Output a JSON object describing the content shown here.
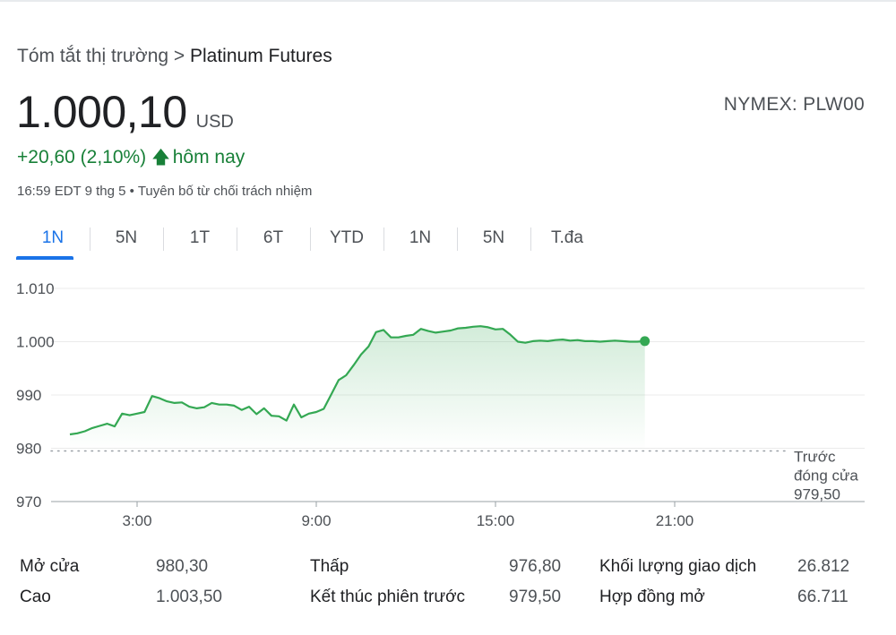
{
  "breadcrumb": {
    "parent": "Tóm tắt thị trường",
    "separator": ">",
    "current": "Platinum Futures"
  },
  "quote": {
    "price": "1.000,10",
    "currency": "USD",
    "exchange": "NYMEX: PLW00",
    "change": "+20,60 (2,10%)",
    "change_suffix": "hôm nay",
    "timestamp": "16:59 EDT 9 thg 5",
    "disclaimer": "Tuyên bố từ chối trách nhiệm"
  },
  "tabs": [
    {
      "label": "1N",
      "active": true
    },
    {
      "label": "5N"
    },
    {
      "label": "1T"
    },
    {
      "label": "6T"
    },
    {
      "label": "YTD"
    },
    {
      "label": "1N"
    },
    {
      "label": "5N"
    },
    {
      "label": "T.đa"
    }
  ],
  "colors": {
    "up": "#188038",
    "line": "#34a853",
    "accent": "#1a73e8"
  },
  "chart_data": {
    "type": "area",
    "x_unit": "hours",
    "x_ticks": [
      3,
      9,
      15,
      21
    ],
    "x_tick_labels": [
      "3:00",
      "9:00",
      "15:00",
      "21:00"
    ],
    "xlim": [
      0,
      26
    ],
    "ylim": [
      970,
      1010
    ],
    "y_ticks": [
      970,
      980,
      990,
      1000,
      1010
    ],
    "y_tick_labels": [
      "970",
      "980",
      "990",
      "1.000",
      "1.010"
    ],
    "grid": true,
    "previous_close": 979.5,
    "previous_close_label": [
      "Trước",
      "đóng cửa",
      "979,50"
    ],
    "series": [
      {
        "x": [
          0.75,
          1,
          1.25,
          1.5,
          1.75,
          2,
          2.25,
          2.5,
          2.75,
          3,
          3.25,
          3.5,
          3.75,
          4,
          4.25,
          4.5,
          4.75,
          5,
          5.25,
          5.5,
          5.75,
          6,
          6.25,
          6.5,
          6.75,
          7,
          7.25,
          7.5,
          7.75,
          8,
          8.25,
          8.5,
          8.75,
          9,
          9.25,
          9.5,
          9.75,
          10,
          10.25,
          10.5,
          10.75,
          11,
          11.25,
          11.5,
          11.75,
          12,
          12.25,
          12.5,
          12.75,
          13,
          13.25,
          13.5,
          13.75,
          14,
          14.25,
          14.5,
          14.75,
          15,
          15.25,
          15.5,
          15.75,
          16,
          16.25,
          16.5,
          16.75,
          17,
          17.25,
          17.5,
          17.75,
          18,
          18.25,
          18.5,
          18.75,
          19,
          19.25,
          19.5,
          19.75,
          20
        ],
        "values": [
          982.6,
          982.8,
          983.2,
          983.8,
          984.2,
          984.6,
          984.1,
          986.5,
          986.2,
          986.5,
          986.8,
          989.8,
          989.4,
          988.8,
          988.5,
          988.6,
          987.8,
          987.5,
          987.7,
          988.5,
          988.2,
          988.2,
          988.0,
          987.2,
          987.8,
          986.4,
          987.5,
          986.1,
          986.0,
          985.2,
          988.2,
          985.8,
          986.5,
          986.8,
          987.4,
          990.1,
          992.8,
          993.7,
          995.6,
          997.6,
          999.1,
          1001.8,
          1002.2,
          1000.8,
          1000.8,
          1001.1,
          1001.3,
          1002.4,
          1002.0,
          1001.7,
          1001.9,
          1002.1,
          1002.5,
          1002.6,
          1002.8,
          1002.9,
          1002.7,
          1002.3,
          1002.4,
          1001.3,
          1000.0,
          999.8,
          1000.1,
          1000.2,
          1000.1,
          1000.3,
          1000.4,
          1000.2,
          1000.3,
          1000.1,
          1000.1,
          1000.0,
          1000.1,
          1000.2,
          1000.1,
          1000.0,
          1000.0,
          1000.1
        ]
      }
    ]
  },
  "stats": [
    {
      "label": "Mở cửa",
      "value": "980,30"
    },
    {
      "label": "Cao",
      "value": "1.003,50"
    },
    {
      "label": "Thấp",
      "value": "976,80"
    },
    {
      "label": "Kết thúc phiên trước",
      "value": "979,50"
    },
    {
      "label": "Khối lượng giao dịch",
      "value": "26.812"
    },
    {
      "label": "Hợp đồng mở",
      "value": "66.711"
    }
  ]
}
